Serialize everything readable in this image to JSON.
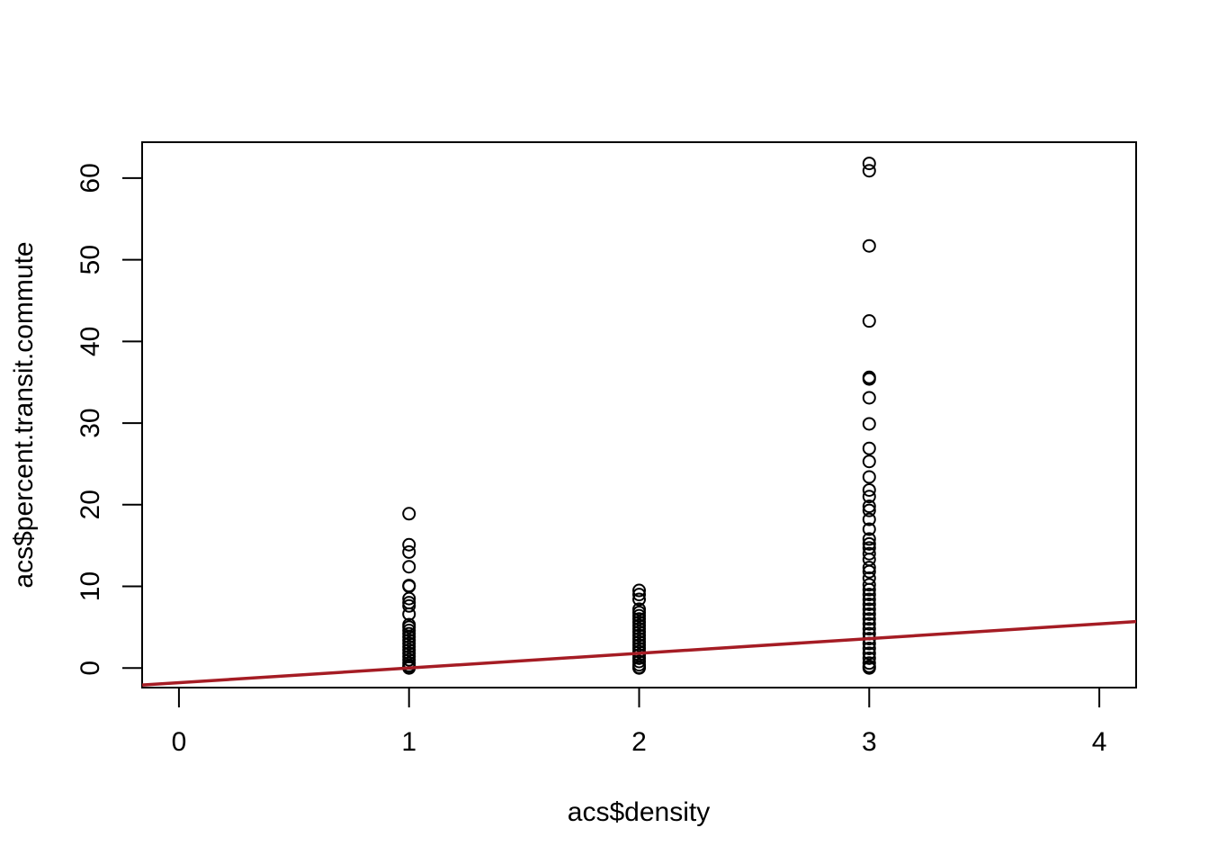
{
  "chart_data": {
    "type": "scatter",
    "xlabel": "acs$density",
    "ylabel": "acs$percent.transit.commute",
    "xlim": [
      -0.16,
      4.16
    ],
    "ylim": [
      -2.4,
      64.4
    ],
    "x_ticks": [
      0,
      1,
      2,
      3,
      4
    ],
    "y_ticks": [
      0,
      10,
      20,
      30,
      40,
      50,
      60
    ],
    "grid": false,
    "point_color": "#000000",
    "line_color": "#A51C24",
    "regression_line": {
      "intercept": -1.8,
      "slope": 1.8
    },
    "points": [
      {
        "x": 1,
        "y": 18.9
      },
      {
        "x": 1,
        "y": 15.1
      },
      {
        "x": 1,
        "y": 14.2
      },
      {
        "x": 1,
        "y": 12.4
      },
      {
        "x": 1,
        "y": 10.1
      },
      {
        "x": 1,
        "y": 10.0
      },
      {
        "x": 1,
        "y": 8.5
      },
      {
        "x": 1,
        "y": 8.0
      },
      {
        "x": 1,
        "y": 7.6
      },
      {
        "x": 1,
        "y": 6.6
      },
      {
        "x": 1,
        "y": 5.3
      },
      {
        "x": 1,
        "y": 5.0
      },
      {
        "x": 1,
        "y": 4.6
      },
      {
        "x": 1,
        "y": 4.2
      },
      {
        "x": 1,
        "y": 3.8
      },
      {
        "x": 1,
        "y": 3.4
      },
      {
        "x": 1,
        "y": 3.0
      },
      {
        "x": 1,
        "y": 2.6
      },
      {
        "x": 1,
        "y": 2.2
      },
      {
        "x": 1,
        "y": 1.8
      },
      {
        "x": 1,
        "y": 1.4
      },
      {
        "x": 1,
        "y": 1.0
      },
      {
        "x": 1,
        "y": 0.6
      },
      {
        "x": 1,
        "y": 0.3
      },
      {
        "x": 1,
        "y": 0.1
      },
      {
        "x": 1,
        "y": 0.0
      },
      {
        "x": 2,
        "y": 9.5
      },
      {
        "x": 2,
        "y": 9.0
      },
      {
        "x": 2,
        "y": 8.4
      },
      {
        "x": 2,
        "y": 7.2
      },
      {
        "x": 2,
        "y": 6.8
      },
      {
        "x": 2,
        "y": 6.4
      },
      {
        "x": 2,
        "y": 6.0
      },
      {
        "x": 2,
        "y": 5.6
      },
      {
        "x": 2,
        "y": 5.2
      },
      {
        "x": 2,
        "y": 4.8
      },
      {
        "x": 2,
        "y": 4.4
      },
      {
        "x": 2,
        "y": 4.0
      },
      {
        "x": 2,
        "y": 3.6
      },
      {
        "x": 2,
        "y": 3.2
      },
      {
        "x": 2,
        "y": 2.8
      },
      {
        "x": 2,
        "y": 2.4
      },
      {
        "x": 2,
        "y": 2.0
      },
      {
        "x": 2,
        "y": 1.6
      },
      {
        "x": 2,
        "y": 1.2
      },
      {
        "x": 2,
        "y": 0.8
      },
      {
        "x": 2,
        "y": 0.4
      },
      {
        "x": 2,
        "y": 0.1
      },
      {
        "x": 2,
        "y": 0.0
      },
      {
        "x": 3,
        "y": 61.8
      },
      {
        "x": 3,
        "y": 60.9
      },
      {
        "x": 3,
        "y": 51.7
      },
      {
        "x": 3,
        "y": 42.5
      },
      {
        "x": 3,
        "y": 35.6
      },
      {
        "x": 3,
        "y": 35.4
      },
      {
        "x": 3,
        "y": 33.1
      },
      {
        "x": 3,
        "y": 29.9
      },
      {
        "x": 3,
        "y": 26.9
      },
      {
        "x": 3,
        "y": 25.3
      },
      {
        "x": 3,
        "y": 23.4
      },
      {
        "x": 3,
        "y": 21.8
      },
      {
        "x": 3,
        "y": 21.0
      },
      {
        "x": 3,
        "y": 19.8
      },
      {
        "x": 3,
        "y": 19.3
      },
      {
        "x": 3,
        "y": 18.2
      },
      {
        "x": 3,
        "y": 17.0
      },
      {
        "x": 3,
        "y": 15.8
      },
      {
        "x": 3,
        "y": 15.2
      },
      {
        "x": 3,
        "y": 14.7
      },
      {
        "x": 3,
        "y": 14.0
      },
      {
        "x": 3,
        "y": 13.3
      },
      {
        "x": 3,
        "y": 12.3
      },
      {
        "x": 3,
        "y": 11.8
      },
      {
        "x": 3,
        "y": 11.0
      },
      {
        "x": 3,
        "y": 10.2
      },
      {
        "x": 3,
        "y": 9.6
      },
      {
        "x": 3,
        "y": 9.0
      },
      {
        "x": 3,
        "y": 8.4
      },
      {
        "x": 3,
        "y": 7.8
      },
      {
        "x": 3,
        "y": 7.2
      },
      {
        "x": 3,
        "y": 6.6
      },
      {
        "x": 3,
        "y": 6.0
      },
      {
        "x": 3,
        "y": 5.4
      },
      {
        "x": 3,
        "y": 4.8
      },
      {
        "x": 3,
        "y": 4.2
      },
      {
        "x": 3,
        "y": 3.6
      },
      {
        "x": 3,
        "y": 3.0
      },
      {
        "x": 3,
        "y": 2.4
      },
      {
        "x": 3,
        "y": 1.8
      },
      {
        "x": 3,
        "y": 1.2
      },
      {
        "x": 3,
        "y": 0.6
      },
      {
        "x": 3,
        "y": 0.2
      },
      {
        "x": 3,
        "y": 0.0
      }
    ]
  }
}
